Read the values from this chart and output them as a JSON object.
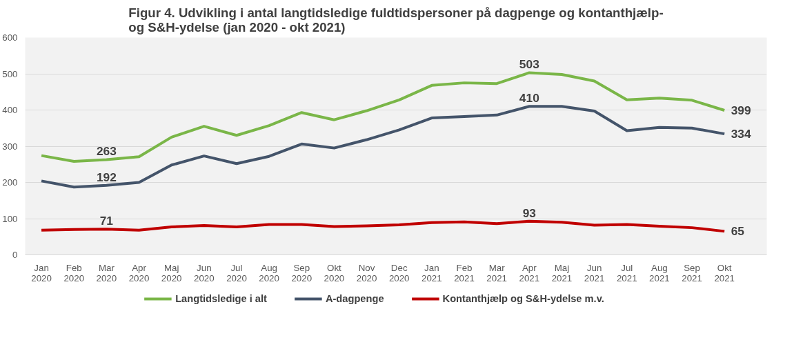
{
  "chart_data": {
    "type": "line",
    "title": "Figur 4. Udvikling i antal langtidsledige fuldtidspersoner på dagpenge og kontanthjælp-\nog S&H-ydelse (jan 2020 - okt 2021)",
    "categories": [
      "Jan\n2020",
      "Feb\n2020",
      "Mar\n2020",
      "Apr\n2020",
      "Maj\n2020",
      "Jun\n2020",
      "Jul\n2020",
      "Aug\n2020",
      "Sep\n2020",
      "Okt\n2020",
      "Nov\n2020",
      "Dec\n2020",
      "Jan\n2021",
      "Feb\n2021",
      "Mar\n2021",
      "Apr\n2021",
      "Maj\n2021",
      "Jun\n2021",
      "Jul\n2021",
      "Aug\n2021",
      "Sep\n2021",
      "Okt\n2021"
    ],
    "series": [
      {
        "name": "Langtidsledige i alt",
        "color": "#7ab648",
        "values": [
          274,
          258,
          263,
          271,
          325,
          355,
          330,
          357,
          393,
          373,
          398,
          428,
          468,
          475,
          473,
          503,
          498,
          480,
          428,
          433,
          427,
          399
        ],
        "value_labels": [
          null,
          null,
          "263",
          null,
          null,
          null,
          null,
          null,
          null,
          null,
          null,
          null,
          null,
          null,
          null,
          "503",
          null,
          null,
          null,
          null,
          null,
          "399"
        ]
      },
      {
        "name": "A-dagpenge",
        "color": "#44546a",
        "values": [
          204,
          187,
          192,
          200,
          248,
          273,
          252,
          272,
          306,
          295,
          318,
          345,
          378,
          382,
          386,
          410,
          410,
          397,
          343,
          352,
          350,
          334
        ],
        "value_labels": [
          null,
          null,
          "192",
          null,
          null,
          null,
          null,
          null,
          null,
          null,
          null,
          null,
          null,
          null,
          null,
          "410",
          null,
          null,
          null,
          null,
          null,
          "334"
        ]
      },
      {
        "name": "Kontanthjælp og S&H-ydelse m.v.",
        "color": "#c00000",
        "values": [
          68,
          70,
          71,
          68,
          77,
          81,
          77,
          84,
          84,
          78,
          80,
          83,
          89,
          91,
          86,
          93,
          90,
          82,
          84,
          79,
          75,
          65
        ],
        "value_labels": [
          null,
          null,
          "71",
          null,
          null,
          null,
          null,
          null,
          null,
          null,
          null,
          null,
          null,
          null,
          null,
          "93",
          null,
          null,
          null,
          null,
          null,
          "65"
        ]
      }
    ],
    "ylim": [
      0,
      600
    ],
    "yticks": [
      0,
      100,
      200,
      300,
      400,
      500,
      600
    ],
    "grid": "y",
    "legend": "bottom",
    "marker": "none",
    "line_style": "solid"
  }
}
